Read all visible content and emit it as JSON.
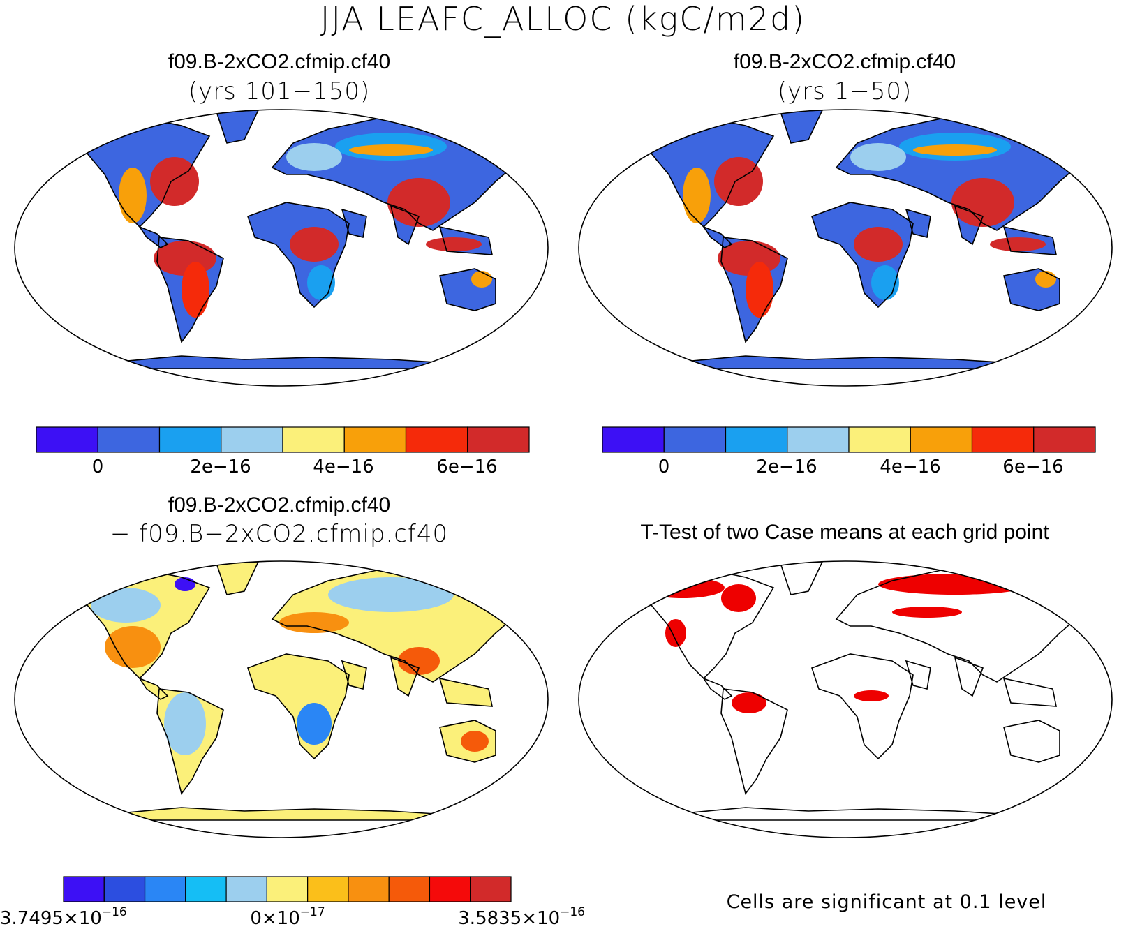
{
  "figure": {
    "title": "JJA LEAFC_ALLOC (kgC/m2d)"
  },
  "panels": [
    {
      "id": "case1",
      "title_line1": "f09.B-2xCO2.cfmip.cf40",
      "title_line2": "(yrs 101−150)",
      "ocean_color": "#ffffff",
      "land_base_color": "#3d66e0"
    },
    {
      "id": "case2",
      "title_line1": "f09.B-2xCO2.cfmip.cf40",
      "title_line2": "(yrs 1−50)",
      "ocean_color": "#ffffff",
      "land_base_color": "#3d66e0"
    },
    {
      "id": "difference",
      "title_line1": "f09.B-2xCO2.cfmip.cf40",
      "title_line2": "− f09.B−2xCO2.cfmip.cf40",
      "land_base_color": "#fbf07a"
    },
    {
      "id": "ttest",
      "title_line1": "T-Test of two Case means at each grid point",
      "note": "Cells are significant at 0.1 level",
      "significant_color": "#ee0000"
    }
  ],
  "colorbar_main": {
    "colors": [
      "#3d10f5",
      "#3d66e0",
      "#1aa0f0",
      "#9ccfee",
      "#fbf07a",
      "#f8a00a",
      "#f52a0a",
      "#d22a2a"
    ],
    "labels": [
      "0",
      "2e−16",
      "4e−16",
      "6e−16"
    ]
  },
  "colorbar_diff": {
    "colors": [
      "#3d10f5",
      "#2c4ee0",
      "#2a86f5",
      "#15bef5",
      "#9ccfee",
      "#fbf07a",
      "#fbbf1a",
      "#f89010",
      "#f55a0a",
      "#f50a0a",
      "#d22a2a"
    ],
    "label_min": "3.7495×10",
    "label_min_exp": "−16",
    "label_mid": "0×10",
    "label_mid_exp": "−17",
    "label_max": "3.5835×10",
    "label_max_exp": "−16"
  }
}
